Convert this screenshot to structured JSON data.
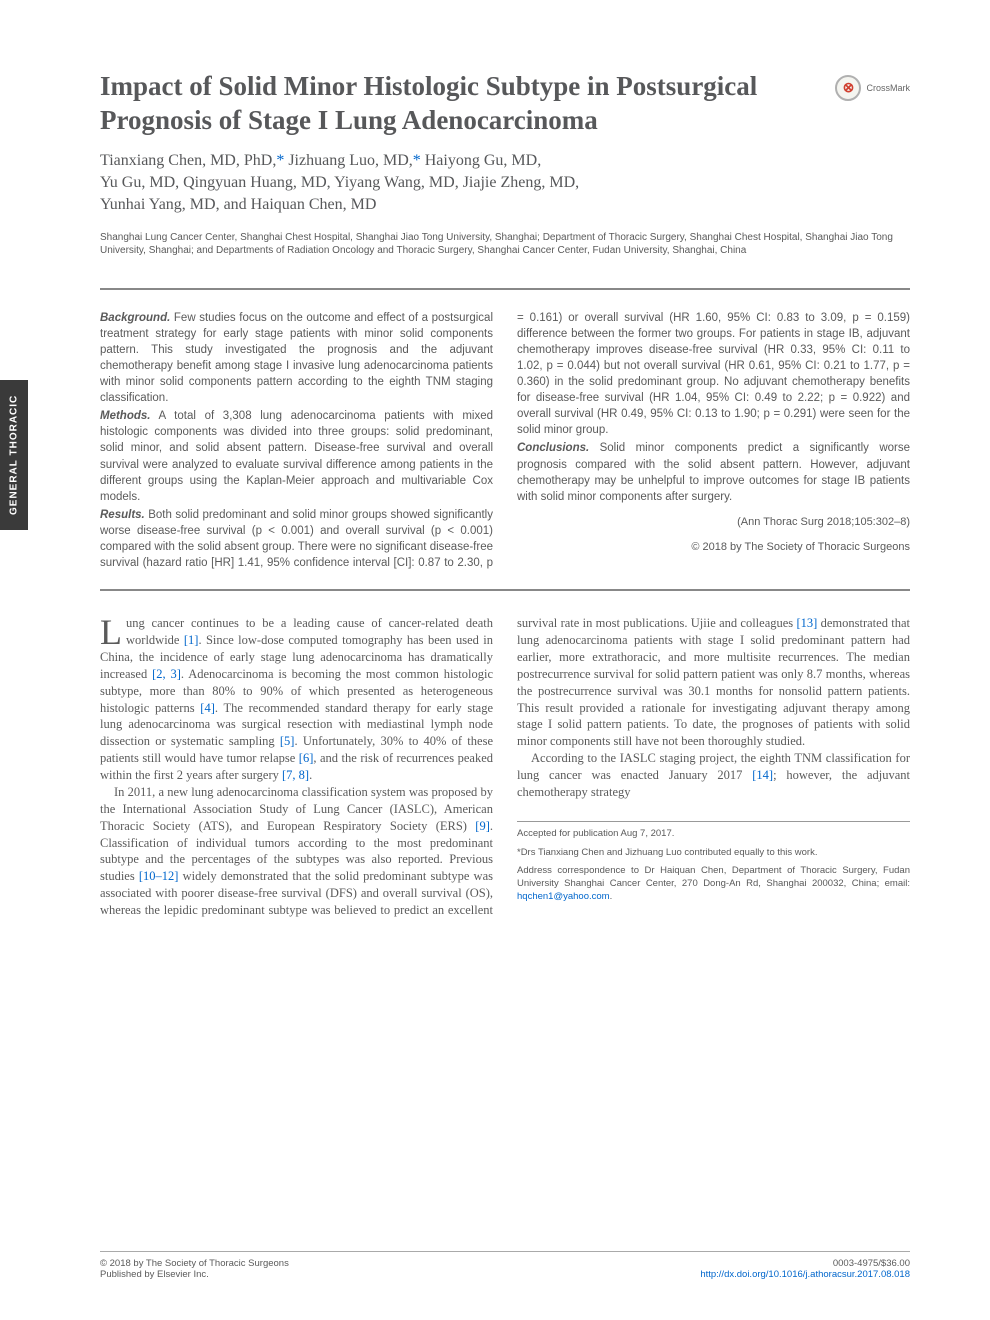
{
  "sidebar": {
    "label": "GENERAL THORACIC"
  },
  "crossmark": {
    "label": "CrossMark"
  },
  "title": "Impact of Solid Minor Histologic Subtype in Postsurgical Prognosis of Stage I Lung Adenocarcinoma",
  "authors": "Tianxiang Chen, MD, PhD,* Jizhuang Luo, MD,* Haiyong Gu, MD, Yu Gu, MD, Qingyuan Huang, MD, Yiyang Wang, MD, Jiajie Zheng, MD, Yunhai Yang, MD, and Haiquan Chen, MD",
  "affiliations": "Shanghai Lung Cancer Center, Shanghai Chest Hospital, Shanghai Jiao Tong University, Shanghai; Department of Thoracic Surgery, Shanghai Chest Hospital, Shanghai Jiao Tong University, Shanghai; and Departments of Radiation Oncology and Thoracic Surgery, Shanghai Cancer Center, Fudan University, Shanghai, China",
  "abstract": {
    "background": {
      "label": "Background.",
      "text": " Few studies focus on the outcome and effect of a postsurgical treatment strategy for early stage patients with minor solid components pattern. This study investigated the prognosis and the adjuvant chemotherapy benefit among stage I invasive lung adenocarcinoma patients with minor solid components pattern according to the eighth TNM staging classification."
    },
    "methods": {
      "label": "Methods.",
      "text": " A total of 3,308 lung adenocarcinoma patients with mixed histologic components was divided into three groups: solid predominant, solid minor, and solid absent pattern. Disease-free survival and overall survival were analyzed to evaluate survival difference among patients in the different groups using the Kaplan-Meier approach and multivariable Cox models."
    },
    "results": {
      "label": "Results.",
      "text": " Both solid predominant and solid minor groups showed significantly worse disease-free survival (p < 0.001) and overall survival (p < 0.001) compared with the solid absent group. There were no significant disease-free survival (hazard ratio [HR] 1.41, 95% confidence interval [CI]: 0.87 to 2.30, p = 0.161) or overall survival (HR 1.60, 95% CI: 0.83 to 3.09, p = 0.159) difference between the former two groups. For patients in stage IB, adjuvant chemotherapy improves disease-free survival (HR 0.33, 95% CI: 0.11 to 1.02, p = 0.044) but not overall survival (HR 0.61, 95% CI: 0.21 to 1.77, p = 0.360) in the solid predominant group. No adjuvant chemotherapy benefits for disease-free survival (HR 1.04, 95% CI: 0.49 to 2.22; p = 0.922) and overall survival (HR 0.49, 95% CI: 0.13 to 1.90; p = 0.291) were seen for the solid minor group."
    },
    "conclusions": {
      "label": "Conclusions.",
      "text": " Solid minor components predict a significantly worse prognosis compared with the solid absent pattern. However, adjuvant chemotherapy may be unhelpful to improve outcomes for stage IB patients with solid minor components after surgery."
    },
    "citation": "(Ann Thorac Surg 2018;105:302–8)",
    "copyright": "© 2018 by The Society of Thoracic Surgeons"
  },
  "body": {
    "p1a": "ung cancer continues to be a leading cause of cancer-related death worldwide ",
    "p1b": ". Since low-dose computed tomography has been used in China, the incidence of early stage lung adenocarcinoma has dramatically increased ",
    "p1c": ". Adenocarcinoma is becoming the most common histologic subtype, more than 80% to 90% of which presented as heterogeneous histologic patterns ",
    "p1d": ". The recommended standard therapy for early stage lung adenocarcinoma was surgical resection with mediastinal lymph node dissection or systematic sampling ",
    "p1e": ". Unfortunately, 30% to 40% of these patients still would have tumor relapse ",
    "p1f": ", and the risk of recurrences peaked within the first 2 years after surgery ",
    "p1g": ".",
    "p2a": "In 2011, a new lung adenocarcinoma classification system was proposed by the International Association Study of Lung Cancer (IASLC), American Thoracic Society (ATS), and European Respiratory Society (ERS) ",
    "p2b": ". Classification of individual tumors according to the most predominant subtype and the percentages of the subtypes was also reported. Previous studies ",
    "p2c": " widely demonstrated that the solid predominant subtype was associated with poorer disease-free survival (DFS) and overall survival (OS), whereas the lepidic predominant subtype was believed to predict an excellent survival rate in most publications. Ujiie and colleagues ",
    "p2d": " demonstrated that lung adenocarcinoma patients with stage I solid predominant pattern had earlier, more extrathoracic, and more multisite recurrences. The median postrecurrence survival for solid pattern patient was only 8.7 months, whereas the postrecurrence survival was 30.1 months for nonsolid pattern patients. This result provided a rationale for investigating adjuvant therapy among stage I solid pattern patients. To date, the prognoses of patients with solid minor components still have not been thoroughly studied.",
    "p3a": "According to the IASLC staging project, the eighth TNM classification for lung cancer was enacted January 2017 ",
    "p3b": "; however, the adjuvant chemotherapy strategy",
    "refs": {
      "r1": "[1]",
      "r23": "[2, 3]",
      "r4": "[4]",
      "r5": "[5]",
      "r6": "[6]",
      "r78": "[7, 8]",
      "r9": "[9]",
      "r1012": "[10–12]",
      "r13": "[13]",
      "r14": "[14]"
    }
  },
  "footnotes": {
    "accepted": "Accepted for publication Aug 7, 2017.",
    "equal": "*Drs Tianxiang Chen and Jizhuang Luo contributed equally to this work.",
    "address": "Address correspondence to Dr Haiquan Chen, Department of Thoracic Surgery, Fudan University Shanghai Cancer Center, 270 Dong-An Rd, Shanghai 200032, China; email: ",
    "email": "hqchen1@yahoo.com"
  },
  "footer": {
    "left1": "© 2018 by The Society of Thoracic Surgeons",
    "left2": "Published by Elsevier Inc.",
    "right1": "0003-4975/$36.00",
    "right2": "http://dx.doi.org/10.1016/j.athoracsur.2017.08.018"
  }
}
